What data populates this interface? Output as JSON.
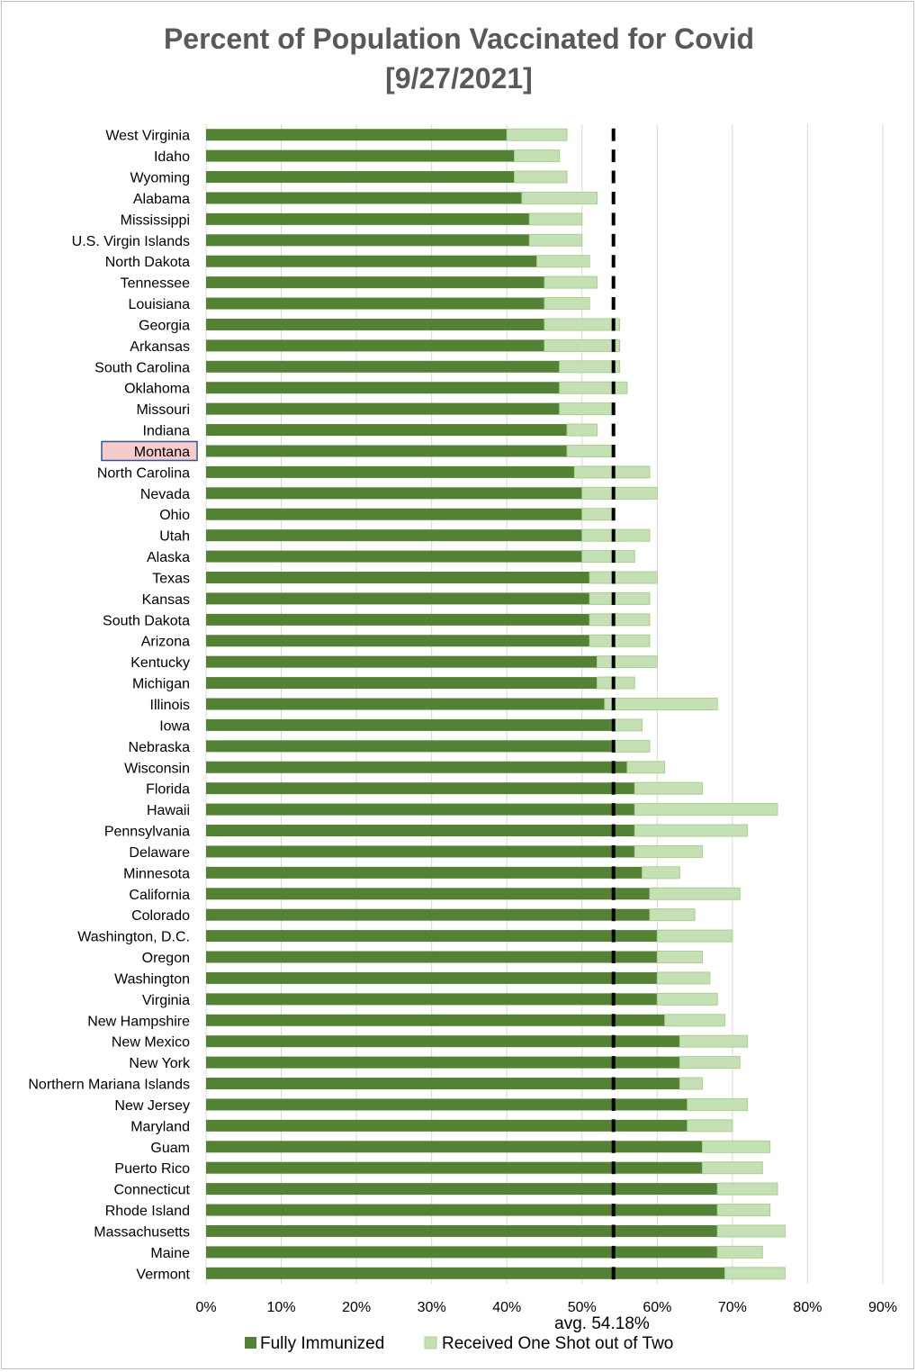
{
  "chart_data": {
    "type": "bar",
    "orientation": "horizontal",
    "stacked": true,
    "title_line1": "Percent of Population Vaccinated for Covid",
    "title_line2": "[9/27/2021]",
    "xlabel": "",
    "ylabel": "",
    "xlim": [
      0,
      90
    ],
    "x_ticks": [
      "0%",
      "10%",
      "20%",
      "30%",
      "40%",
      "50%",
      "60%",
      "70%",
      "80%",
      "90%"
    ],
    "grid": "vertical",
    "legend_position": "bottom",
    "highlight_category": "Montana",
    "average": {
      "value": 54.18,
      "label": "avg. 54.18%"
    },
    "colors": {
      "full": "#548235",
      "partial": "#c5e0b4",
      "partial_border": "#a9d18e",
      "average": "#000000",
      "highlight_fill": "#f8cbcb",
      "highlight_border": "#2f5597",
      "title": "#595959"
    },
    "categories": [
      "West Virginia",
      "Idaho",
      "Wyoming",
      "Alabama",
      "Mississippi",
      "U.S. Virgin Islands",
      "North Dakota",
      "Tennessee",
      "Louisiana",
      "Georgia",
      "Arkansas",
      "South Carolina",
      "Oklahoma",
      "Missouri",
      "Indiana",
      "Montana",
      "North Carolina",
      "Nevada",
      "Ohio",
      "Utah",
      "Alaska",
      "Texas",
      "Kansas",
      "South Dakota",
      "Arizona",
      "Kentucky",
      "Michigan",
      "Illinois",
      "Iowa",
      "Nebraska",
      "Wisconsin",
      "Florida",
      "Hawaii",
      "Pennsylvania",
      "Delaware",
      "Minnesota",
      "California",
      "Colorado",
      "Washington, D.C.",
      "Oregon",
      "Washington",
      "Virginia",
      "New Hampshire",
      "New Mexico",
      "New York",
      "Northern Mariana Islands",
      "New Jersey",
      "Maryland",
      "Guam",
      "Puerto Rico",
      "Connecticut",
      "Rhode Island",
      "Massachusetts",
      "Maine",
      "Vermont"
    ],
    "series": [
      {
        "name": "Fully Immunized",
        "values": [
          40,
          41,
          41,
          42,
          43,
          43,
          44,
          45,
          45,
          45,
          45,
          47,
          47,
          47,
          48,
          48,
          49,
          50,
          50,
          50,
          50,
          51,
          51,
          51,
          51,
          52,
          52,
          53,
          54,
          54,
          56,
          57,
          57,
          57,
          57,
          58,
          59,
          59,
          60,
          60,
          60,
          60,
          61,
          63,
          63,
          63,
          64,
          64,
          66,
          66,
          68,
          68,
          68,
          68,
          69
        ]
      },
      {
        "name": "Received One Shot out of Two",
        "values": [
          8,
          6,
          7,
          10,
          7,
          7,
          7,
          7,
          6,
          10,
          10,
          8,
          9,
          7,
          4,
          6,
          10,
          10,
          4,
          9,
          7,
          9,
          8,
          8,
          8,
          8,
          5,
          15,
          4,
          5,
          5,
          9,
          19,
          15,
          9,
          5,
          12,
          6,
          10,
          6,
          7,
          8,
          8,
          9,
          8,
          3,
          8,
          6,
          9,
          8,
          8,
          7,
          9,
          6,
          8
        ]
      }
    ]
  }
}
